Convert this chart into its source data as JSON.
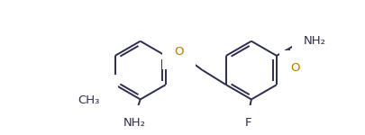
{
  "bg_color": "#ffffff",
  "bond_color": "#2d2d4e",
  "label_color": "#2d2d4e",
  "o_color": "#b87800",
  "n_color": "#2d2d4e",
  "f_color": "#2d2d4e",
  "line_width": 1.4,
  "font_size": 9.5,
  "LCX": 135,
  "LCY": 72,
  "RCX": 295,
  "RCY": 72,
  "R": 42,
  "xlim": [
    0,
    406
  ],
  "ylim": [
    0,
    150
  ]
}
